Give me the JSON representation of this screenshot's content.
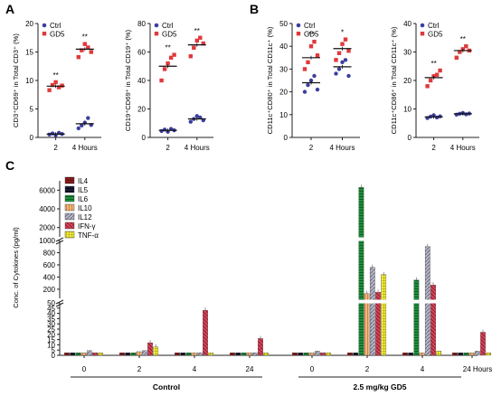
{
  "panel_labels": {
    "a": "A",
    "b": "B",
    "c": "C"
  },
  "colors": {
    "ctrl": "#3c3f9e",
    "gd5": "#e0393c",
    "axis": "#222222"
  },
  "chart_data": [
    {
      "id": "a1",
      "type": "scatter",
      "ylabel": "CD3⁺CD69⁺ in Total CD3⁺ (%)",
      "ylim": [
        0,
        20
      ],
      "yticks": [
        0,
        5,
        10,
        15,
        20
      ],
      "categories": [
        "2",
        "4 Hours"
      ],
      "legend": [
        "Ctrl",
        "GD5"
      ],
      "legend_position": "top-left",
      "series": [
        {
          "name": "Ctrl",
          "means": [
            0.6,
            2.4
          ],
          "points": [
            [
              0.5,
              0.7,
              0.4,
              0.8,
              0.6
            ],
            [
              1.6,
              2.1,
              2.6,
              3.4,
              2.2
            ]
          ]
        },
        {
          "name": "GD5",
          "means": [
            9.0,
            15.5
          ],
          "points": [
            [
              8.3,
              9.2,
              9.7,
              8.8,
              9.1
            ],
            [
              14.1,
              15.3,
              16.4,
              15.8,
              15.0
            ]
          ]
        }
      ],
      "annotations": [
        "**",
        "**"
      ]
    },
    {
      "id": "a2",
      "type": "scatter",
      "ylabel": "CD19⁺CD69⁺ in Total CD19⁺ (%)",
      "ylim": [
        0,
        80
      ],
      "yticks": [
        0,
        20,
        40,
        60,
        80
      ],
      "categories": [
        "2",
        "4 Hours"
      ],
      "legend": [
        "Ctrl",
        "GD5"
      ],
      "legend_position": "top-left",
      "series": [
        {
          "name": "Ctrl",
          "means": [
            5,
            13
          ],
          "points": [
            [
              4.5,
              5.5,
              4.0,
              6.0,
              5.0
            ],
            [
              11,
              13,
              15,
              14,
              12
            ]
          ]
        },
        {
          "name": "GD5",
          "means": [
            50,
            65
          ],
          "points": [
            [
              40,
              48,
              52,
              56,
              58
            ],
            [
              57,
              63,
              68,
              70,
              66
            ]
          ]
        }
      ],
      "annotations": [
        "**",
        "**"
      ]
    },
    {
      "id": "b1",
      "type": "scatter",
      "ylabel": "CD11c⁺CD80⁺ in Total CD11c⁺ (%)",
      "ylim": [
        0,
        50
      ],
      "yticks": [
        0,
        10,
        20,
        30,
        40,
        50
      ],
      "categories": [
        "2",
        "4 Hours"
      ],
      "legend": [
        "Ctrl",
        "GD5"
      ],
      "legend_position": "top-left",
      "series": [
        {
          "name": "Ctrl",
          "means": [
            24,
            31
          ],
          "points": [
            [
              20,
              23,
              25,
              27,
              21
            ],
            [
              28,
              30,
              33,
              34,
              27
            ]
          ]
        },
        {
          "name": "GD5",
          "means": [
            35,
            39
          ],
          "points": [
            [
              30,
              33,
              40,
              42,
              36
            ],
            [
              34,
              37,
              41,
              43,
              38
            ]
          ]
        }
      ],
      "annotations": [
        "**",
        "*"
      ]
    },
    {
      "id": "b2",
      "type": "scatter",
      "ylabel": "CD11c⁺CD86⁺ in Total CD11c⁺ (%)",
      "ylim": [
        0,
        40
      ],
      "yticks": [
        0,
        10,
        20,
        30,
        40
      ],
      "categories": [
        "2",
        "4 Hours"
      ],
      "legend": [
        "Ctrl",
        "GD5"
      ],
      "legend_position": "top-left",
      "series": [
        {
          "name": "Ctrl",
          "means": [
            7.2,
            8.3
          ],
          "points": [
            [
              6.8,
              7.3,
              7.8,
              7.0,
              7.4
            ],
            [
              8.0,
              8.3,
              8.6,
              8.1,
              8.4
            ]
          ]
        },
        {
          "name": "GD5",
          "means": [
            21,
            30.5
          ],
          "points": [
            [
              18,
              20,
              21.5,
              22,
              23.5
            ],
            [
              28,
              30,
              31,
              32,
              30.5
            ]
          ]
        }
      ],
      "annotations": [
        "**",
        "**"
      ]
    },
    {
      "id": "c",
      "type": "bar",
      "ylabel": "Conc. of Cytokines (pg/ml)",
      "y_segments": [
        {
          "range": [
            0,
            50
          ],
          "ticks": [
            0,
            5,
            10,
            15,
            20,
            25,
            30,
            35,
            40,
            45,
            50
          ]
        },
        {
          "range": [
            50,
            1000
          ],
          "ticks": [
            200,
            400,
            600,
            800,
            1000
          ]
        },
        {
          "range": [
            1000,
            7000
          ],
          "ticks": [
            2000,
            4000,
            6000
          ]
        }
      ],
      "x_tick_labels": [
        "0",
        "2",
        "4",
        "24",
        "0",
        "2",
        "4",
        "24 Hours"
      ],
      "groups": [
        "Control",
        "2.5 mg/kg GD5"
      ],
      "series": [
        {
          "name": "IL4",
          "values": [
            2.5,
            2.5,
            2.5,
            2.5,
            2.5,
            2.5,
            2.5,
            2.5
          ]
        },
        {
          "name": "IL5",
          "values": [
            2.5,
            2.5,
            2.5,
            2.5,
            2.5,
            2.5,
            2.5,
            2.5
          ]
        },
        {
          "name": "IL6",
          "values": [
            2.5,
            2.5,
            2.5,
            2.5,
            2.5,
            6300,
            350,
            2.5
          ]
        },
        {
          "name": "IL10",
          "values": [
            2.5,
            3.5,
            2.5,
            2.5,
            2.5,
            130,
            2.5,
            2.5
          ]
        },
        {
          "name": "IL12",
          "values": [
            4.5,
            4.5,
            2.5,
            2.5,
            4.0,
            560,
            900,
            4.0
          ]
        },
        {
          "name": "IFN-γ",
          "values": [
            2.5,
            12,
            43,
            16,
            2.5,
            150,
            270,
            22
          ]
        },
        {
          "name": "TNF-α",
          "values": [
            2.5,
            8,
            2.5,
            2.5,
            2.5,
            440,
            4.0,
            2.5
          ]
        }
      ]
    }
  ]
}
